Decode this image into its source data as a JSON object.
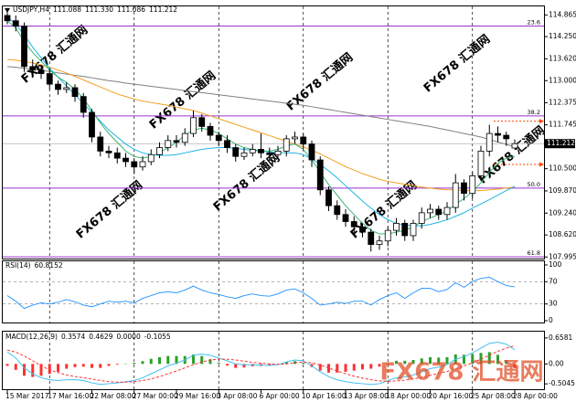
{
  "chart_data": [
    {
      "type": "candlestick",
      "title": "USDJPY,H4",
      "readout": [
        111.088,
        {
          "value": 111.33,
          "label": "111.330"
        },
        111.086,
        111.212
      ],
      "categories": [
        "15 Mar 2017",
        null,
        null,
        null,
        null,
        "17 Mar 16:00",
        null,
        null,
        null,
        null,
        "22 Mar 08:00",
        null,
        null,
        null,
        null,
        "27 Mar 00:00",
        null,
        null,
        null,
        null,
        "29 Mar 16:00",
        null,
        null,
        null,
        null,
        "3 Apr 08:00",
        null,
        null,
        null,
        null,
        "6 Apr 00:00",
        null,
        null,
        null,
        null,
        "10 Apr 16:00",
        null,
        null,
        null,
        null,
        "13 Apr 08:00",
        null,
        null,
        null,
        null,
        "18 Apr 00:00",
        null,
        null,
        null,
        null,
        "20 Apr 16:00",
        null,
        null,
        null,
        null,
        "25 Apr 08:00",
        null,
        null,
        null,
        null,
        "28 Apr 00:00"
      ],
      "open": [
        114.85,
        114.7,
        114.55,
        113.4,
        113.3,
        113.2,
        112.9,
        112.75,
        112.8,
        112.55,
        112.1,
        111.4,
        111.0,
        110.95,
        110.8,
        110.7,
        110.55,
        110.7,
        110.9,
        111.1,
        111.3,
        111.25,
        111.5,
        111.95,
        111.7,
        111.45,
        111.3,
        111.1,
        110.85,
        110.95,
        111.05,
        110.95,
        110.9,
        111.0,
        111.35,
        111.4,
        111.2,
        110.75,
        109.9,
        109.45,
        109.2,
        109.0,
        108.85,
        108.7,
        108.35,
        108.45,
        108.75,
        108.95,
        108.6,
        108.95,
        109.25,
        109.35,
        109.2,
        109.4,
        110.1,
        109.8,
        110.3,
        111.0,
        111.5,
        111.45,
        111.088
      ],
      "high": [
        114.95,
        114.85,
        114.65,
        113.6,
        113.45,
        113.35,
        113.0,
        112.95,
        112.9,
        112.65,
        112.2,
        111.55,
        111.15,
        111.1,
        110.95,
        110.8,
        110.85,
        111.05,
        111.25,
        111.45,
        111.45,
        111.65,
        112.15,
        112.05,
        111.8,
        111.55,
        111.45,
        111.2,
        111.1,
        111.2,
        111.5,
        111.1,
        111.15,
        111.45,
        111.55,
        111.5,
        111.3,
        110.85,
        110.0,
        109.6,
        109.35,
        109.15,
        108.95,
        108.8,
        108.6,
        108.85,
        109.1,
        109.05,
        109.05,
        109.4,
        109.5,
        109.45,
        109.55,
        110.35,
        110.2,
        110.4,
        111.15,
        111.75,
        111.7,
        111.55,
        111.33
      ],
      "low": [
        114.6,
        114.4,
        113.25,
        113.15,
        113.05,
        112.75,
        112.6,
        112.65,
        112.4,
        111.95,
        111.25,
        110.85,
        110.8,
        110.65,
        110.55,
        110.35,
        110.45,
        110.6,
        110.8,
        111.0,
        111.1,
        111.15,
        111.4,
        111.55,
        111.3,
        111.15,
        110.95,
        110.7,
        110.75,
        110.85,
        110.8,
        110.75,
        110.8,
        110.85,
        111.2,
        111.05,
        110.55,
        109.75,
        109.3,
        109.05,
        108.85,
        108.7,
        108.55,
        108.15,
        108.2,
        108.3,
        108.6,
        108.45,
        108.45,
        108.8,
        109.1,
        109.05,
        109.05,
        109.25,
        109.6,
        109.65,
        110.15,
        110.85,
        111.25,
        111.15,
        111.086
      ],
      "close": [
        114.7,
        114.55,
        113.4,
        113.3,
        113.2,
        112.9,
        112.75,
        112.8,
        112.55,
        112.1,
        111.4,
        111.0,
        110.95,
        110.8,
        110.7,
        110.55,
        110.7,
        110.9,
        111.1,
        111.3,
        111.25,
        111.5,
        111.95,
        111.7,
        111.45,
        111.3,
        111.1,
        110.85,
        110.95,
        111.05,
        110.95,
        110.9,
        111.0,
        111.35,
        111.4,
        111.2,
        110.75,
        109.9,
        109.45,
        109.2,
        109.0,
        108.85,
        108.7,
        108.35,
        108.45,
        108.75,
        108.95,
        108.6,
        108.95,
        109.25,
        109.35,
        109.2,
        109.4,
        110.1,
        109.8,
        110.3,
        111.0,
        111.5,
        111.45,
        111.35,
        111.212
      ],
      "overlays": [
        {
          "color": "#808080",
          "values": [
            113.4,
            113.38,
            113.35,
            113.32,
            113.29,
            113.26,
            113.22,
            113.19,
            113.15,
            113.12,
            113.08,
            113.04,
            113.0,
            112.97,
            112.93,
            112.9,
            112.87,
            112.84,
            112.81,
            112.78,
            112.75,
            112.72,
            112.69,
            112.66,
            112.63,
            112.6,
            112.57,
            112.54,
            112.51,
            112.48,
            112.45,
            112.42,
            112.39,
            112.36,
            112.33,
            112.3,
            112.26,
            112.22,
            112.18,
            112.14,
            112.1,
            112.06,
            112.02,
            111.98,
            111.94,
            111.9,
            111.86,
            111.82,
            111.78,
            111.74,
            111.7,
            111.65,
            111.6,
            111.55,
            111.5,
            111.45,
            111.4,
            111.33,
            111.26,
            111.19,
            111.12
          ]
        },
        {
          "color": "#f4a020",
          "values": [
            113.6,
            113.58,
            113.55,
            113.5,
            113.45,
            113.38,
            113.3,
            113.22,
            113.12,
            113.02,
            112.92,
            112.82,
            112.72,
            112.62,
            112.55,
            112.48,
            112.42,
            112.38,
            112.34,
            112.3,
            112.25,
            112.2,
            112.15,
            112.08,
            112.0,
            111.92,
            111.84,
            111.76,
            111.68,
            111.6,
            111.52,
            111.44,
            111.36,
            111.28,
            111.2,
            111.12,
            111.02,
            110.92,
            110.8,
            110.68,
            110.56,
            110.46,
            110.36,
            110.28,
            110.2,
            110.14,
            110.1,
            110.06,
            110.02,
            109.98,
            109.95,
            109.92,
            109.9,
            109.9,
            109.88,
            109.88,
            109.88,
            109.9,
            109.92,
            109.95,
            109.98
          ]
        },
        {
          "color": "#1eb4e6",
          "values": [
            114.8,
            114.6,
            114.3,
            113.95,
            113.65,
            113.35,
            113.1,
            112.85,
            112.6,
            112.35,
            112.1,
            111.85,
            111.6,
            111.4,
            111.2,
            111.05,
            110.95,
            110.9,
            110.88,
            110.88,
            110.9,
            110.95,
            111.0,
            111.05,
            111.08,
            111.1,
            111.1,
            111.08,
            111.05,
            111.02,
            111.0,
            110.98,
            110.96,
            110.95,
            110.95,
            110.9,
            110.78,
            110.62,
            110.44,
            110.24,
            110.02,
            109.8,
            109.58,
            109.38,
            109.2,
            109.05,
            108.95,
            108.9,
            108.88,
            108.88,
            108.92,
            108.98,
            109.05,
            109.15,
            109.25,
            109.38,
            109.5,
            109.62,
            109.75,
            109.88,
            110.0
          ]
        },
        {
          "color": "#3cb371",
          "values": [
            114.7,
            114.5,
            114.1,
            113.8,
            113.55,
            113.3,
            113.1,
            112.95,
            112.75,
            112.5,
            112.15,
            111.8,
            111.5,
            111.25,
            111.0,
            110.85,
            110.8,
            110.85,
            110.95,
            111.1,
            111.25,
            111.45,
            111.6,
            111.65,
            111.6,
            111.5,
            111.35,
            111.2,
            111.1,
            111.05,
            111.0,
            111.0,
            111.05,
            111.15,
            111.2,
            111.05,
            110.75,
            110.4,
            110.05,
            109.75,
            109.45,
            109.2,
            108.95,
            108.75,
            108.65,
            108.65,
            108.7,
            108.75,
            108.85,
            109.0,
            109.1,
            109.2,
            109.3,
            109.5,
            109.65,
            109.85,
            110.1,
            110.4,
            110.65,
            110.8,
            110.85
          ]
        }
      ],
      "fib_color": "#9932cc",
      "fib_levels": [
        {
          "label": "23.6",
          "value": 114.55
        },
        {
          "label": "38.2",
          "value": 112.0
        },
        {
          "label": "50.0",
          "value": 109.95
        },
        {
          "label": "61.8",
          "value": 108.0
        }
      ],
      "arrow_color": "#ff4500",
      "arrow_levels": [
        111.85,
        110.62
      ],
      "ylim": [
        107.95,
        115.03
      ],
      "yticks": [
        114.865,
        {
          "value": 114.25,
          "label": "114.250"
        },
        {
          "value": 113.62,
          "label": "113.620"
        },
        {
          "value": 113.0,
          "label": "113.000"
        },
        112.375,
        111.745,
        {
          "value": 110.5,
          "label": "110.500"
        },
        {
          "value": 109.87,
          "label": "109.870"
        },
        {
          "value": 109.24,
          "label": "109.240"
        },
        {
          "value": 108.62,
          "label": "108.620"
        },
        107.995
      ],
      "vgrid": true,
      "watermark": "FX678 汇通网"
    },
    {
      "type": "line",
      "title": "RSI(14)",
      "color": "#1e90ff",
      "values": [
        45,
        35,
        22,
        28,
        32,
        30,
        33,
        38,
        34,
        28,
        25,
        30,
        35,
        33,
        35,
        32,
        40,
        45,
        50,
        52,
        50,
        55,
        62,
        55,
        50,
        47,
        43,
        40,
        45,
        48,
        45,
        44,
        48,
        55,
        57,
        50,
        40,
        28,
        30,
        33,
        31,
        35,
        35,
        28,
        38,
        45,
        50,
        40,
        50,
        58,
        58,
        52,
        56,
        68,
        60,
        70,
        76,
        78,
        70,
        63,
        60.8152
      ],
      "ylim": [
        0,
        100
      ],
      "yticks": [
        100,
        70,
        30,
        0
      ]
    },
    {
      "type": "macd",
      "title": "MACD(12,26,9)",
      "readout": [
        0.3574,
        0.4629,
        {
          "value": 0,
          "label": "0.0000"
        },
        -0.1055
      ],
      "main": {
        "color": "#40c0f0",
        "values": [
          0.3,
          0.15,
          -0.1,
          -0.25,
          -0.35,
          -0.4,
          -0.42,
          -0.4,
          -0.4,
          -0.42,
          -0.48,
          -0.52,
          -0.5,
          -0.48,
          -0.45,
          -0.42,
          -0.35,
          -0.25,
          -0.15,
          -0.05,
          0.02,
          0.1,
          0.22,
          0.25,
          0.22,
          0.15,
          0.08,
          0.0,
          -0.02,
          -0.02,
          -0.03,
          -0.04,
          -0.02,
          0.05,
          0.1,
          0.08,
          -0.05,
          -0.2,
          -0.32,
          -0.4,
          -0.45,
          -0.48,
          -0.5,
          -0.52,
          -0.5,
          -0.42,
          -0.35,
          -0.33,
          -0.28,
          -0.2,
          -0.12,
          -0.08,
          -0.02,
          0.12,
          0.18,
          0.28,
          0.4,
          0.52,
          0.55,
          0.5,
          0.3574
        ]
      },
      "signal": {
        "color": "#ff3030",
        "values": [
          0.35,
          0.3,
          0.2,
          0.08,
          -0.05,
          -0.15,
          -0.22,
          -0.28,
          -0.32,
          -0.35,
          -0.38,
          -0.42,
          -0.45,
          -0.46,
          -0.46,
          -0.45,
          -0.42,
          -0.38,
          -0.32,
          -0.25,
          -0.18,
          -0.1,
          -0.02,
          0.05,
          0.1,
          0.12,
          0.12,
          0.1,
          0.07,
          0.04,
          0.02,
          0.0,
          -0.01,
          0.0,
          0.03,
          0.05,
          0.03,
          -0.03,
          -0.1,
          -0.18,
          -0.25,
          -0.31,
          -0.36,
          -0.4,
          -0.43,
          -0.44,
          -0.43,
          -0.41,
          -0.38,
          -0.34,
          -0.29,
          -0.24,
          -0.19,
          -0.12,
          -0.05,
          0.03,
          0.12,
          0.22,
          0.32,
          0.4,
          0.4629
        ]
      },
      "histogram": {
        "up_color": "#2ca02c",
        "down_color": "#ff3030",
        "values": [
          -0.05,
          -0.15,
          -0.3,
          -0.33,
          -0.3,
          -0.25,
          -0.2,
          -0.12,
          -0.08,
          -0.07,
          -0.1,
          -0.1,
          -0.05,
          -0.02,
          0.01,
          0.03,
          0.07,
          0.13,
          0.17,
          0.2,
          0.2,
          0.2,
          0.24,
          0.2,
          0.12,
          0.03,
          -0.04,
          -0.1,
          -0.09,
          -0.06,
          -0.05,
          -0.04,
          -0.01,
          0.05,
          0.07,
          0.03,
          -0.08,
          -0.17,
          -0.22,
          -0.22,
          -0.2,
          -0.17,
          -0.14,
          -0.12,
          -0.07,
          0.02,
          0.08,
          0.08,
          0.1,
          0.14,
          0.17,
          0.16,
          0.17,
          0.24,
          0.23,
          0.25,
          0.28,
          0.3,
          0.23,
          0.1,
          -0.1055
        ]
      },
      "ylim": [
        -0.594,
        0.748
      ],
      "yticks": [
        0.6581,
        {
          "value": 0,
          "label": "0.00"
        },
        -0.5045
      ]
    }
  ]
}
